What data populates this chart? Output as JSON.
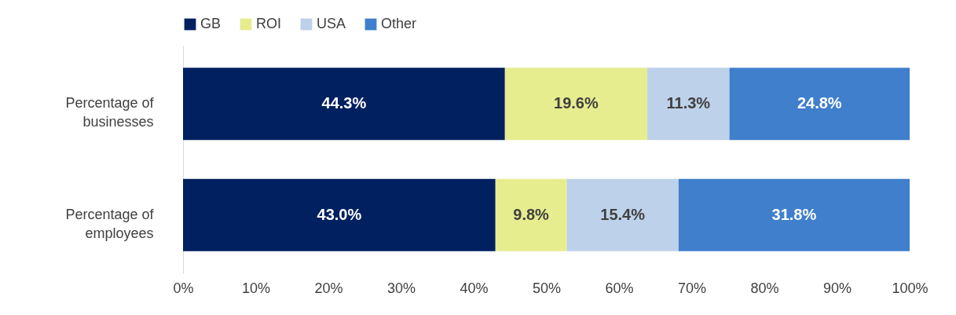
{
  "chart_data": {
    "type": "bar",
    "orientation": "horizontal",
    "stacked": true,
    "categories": [
      "Percentage of businesses",
      "Percentage of employees"
    ],
    "series": [
      {
        "name": "GB",
        "color": "#002060",
        "values": [
          44.3,
          43.0
        ],
        "value_labels": [
          "44.3%",
          "43.0%"
        ]
      },
      {
        "name": "ROI",
        "color": "#e6ed8f",
        "values": [
          19.6,
          9.8
        ],
        "value_labels": [
          "19.6%",
          "9.8%"
        ]
      },
      {
        "name": "USA",
        "color": "#bdd1ea",
        "values": [
          11.3,
          15.4
        ],
        "value_labels": [
          "11.3%",
          "15.4%"
        ]
      },
      {
        "name": "Other",
        "color": "#3f7fcc",
        "values": [
          24.8,
          31.8
        ],
        "value_labels": [
          "24.8%",
          "31.8%"
        ]
      }
    ],
    "xlim": [
      0,
      100
    ],
    "xticks": [
      {
        "value": 0,
        "label": "0%"
      },
      {
        "value": 10,
        "label": "10%"
      },
      {
        "value": 20,
        "label": "20%"
      },
      {
        "value": 30,
        "label": "30%"
      },
      {
        "value": 40,
        "label": "40%"
      },
      {
        "value": 50,
        "label": "50%"
      },
      {
        "value": 60,
        "label": "60%"
      },
      {
        "value": 70,
        "label": "70%"
      },
      {
        "value": 80,
        "label": "80%"
      },
      {
        "value": 90,
        "label": "90%"
      },
      {
        "value": 100,
        "label": "100%"
      }
    ],
    "grid": false,
    "legend": "top"
  }
}
